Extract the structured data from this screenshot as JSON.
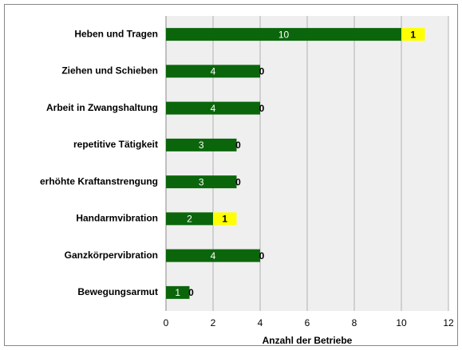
{
  "chart_data": {
    "type": "bar",
    "orientation": "horizontal",
    "stacked": true,
    "categories": [
      "Heben und Tragen",
      "Ziehen und Schieben",
      "Arbeit in Zwangshaltung",
      "repetitive Tätigkeit",
      "erhöhte Kraftanstrengung",
      "Handarmvibration",
      "Ganzkörpervibration",
      "Bewegungsarmut"
    ],
    "series": [
      {
        "color": "#0b660b",
        "label_color": "#ffffff",
        "values": [
          10,
          4,
          4,
          3,
          3,
          2,
          4,
          1
        ]
      },
      {
        "color": "#ffff00",
        "label_color": "#000000",
        "values": [
          1,
          0,
          0,
          0,
          0,
          1,
          0,
          0
        ]
      }
    ],
    "xlabel": "Anzahl der Betriebe",
    "xlim": [
      0,
      12
    ],
    "xticks": [
      0,
      2,
      4,
      6,
      8,
      10,
      12
    ],
    "grid": true
  }
}
